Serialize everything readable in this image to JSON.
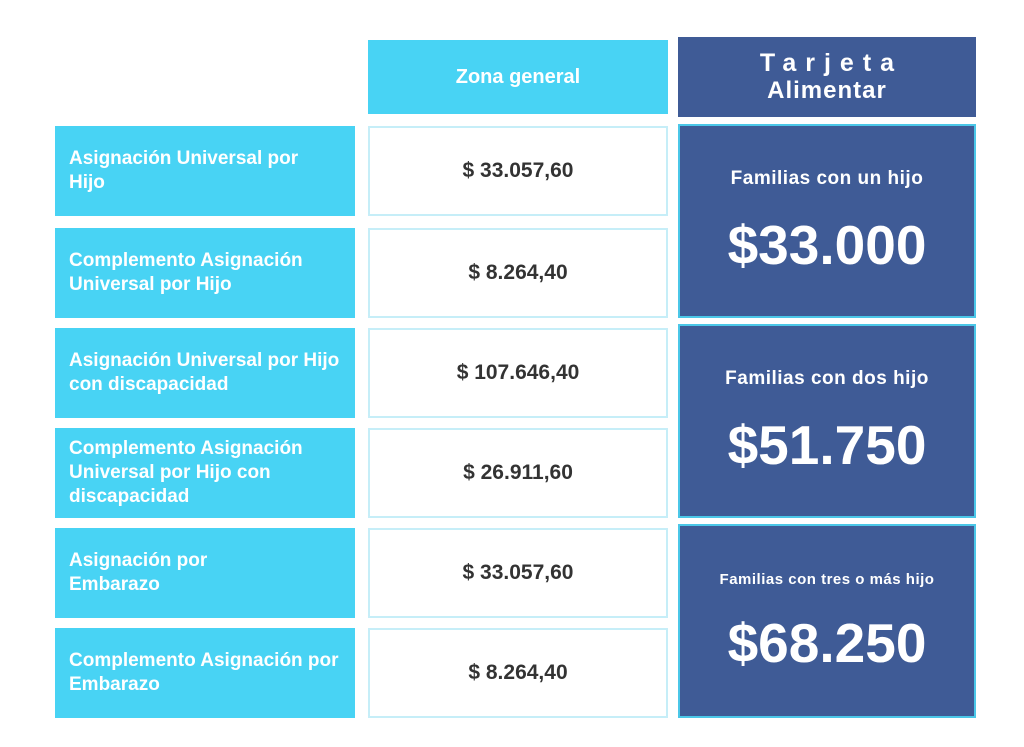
{
  "header": {
    "zona": "Zona general",
    "tarjeta_line1": "Tarjeta",
    "tarjeta_line2": "Alimentar"
  },
  "rows": [
    {
      "label": "Asignación Universal por Hijo",
      "amount": "$ 33.057,60"
    },
    {
      "label": "Complemento Asignación Universal por Hijo",
      "amount": "$ 8.264,40"
    },
    {
      "label": "Asignación Universal por Hijo con discapacidad",
      "amount": "$ 107.646,40"
    },
    {
      "label": "Complemento Asignación Universal por Hijo con discapacidad",
      "amount": "$ 26.911,60"
    },
    {
      "label": "Asignación por Embarazo",
      "amount": "$ 33.057,60"
    },
    {
      "label": "Complemento Asignación por Embarazo",
      "amount": "$ 8.264,40"
    }
  ],
  "tarjeta": [
    {
      "description": "Familias con un hijo",
      "amount": "$33.000"
    },
    {
      "description": "Familias con dos hijo",
      "amount": "$51.750"
    },
    {
      "description": "Familias con tres o más hijo",
      "amount": "$68.250"
    }
  ],
  "colors": {
    "cyan": "#48d3f4",
    "navy": "#3f5b96",
    "amount_text": "#333333"
  }
}
